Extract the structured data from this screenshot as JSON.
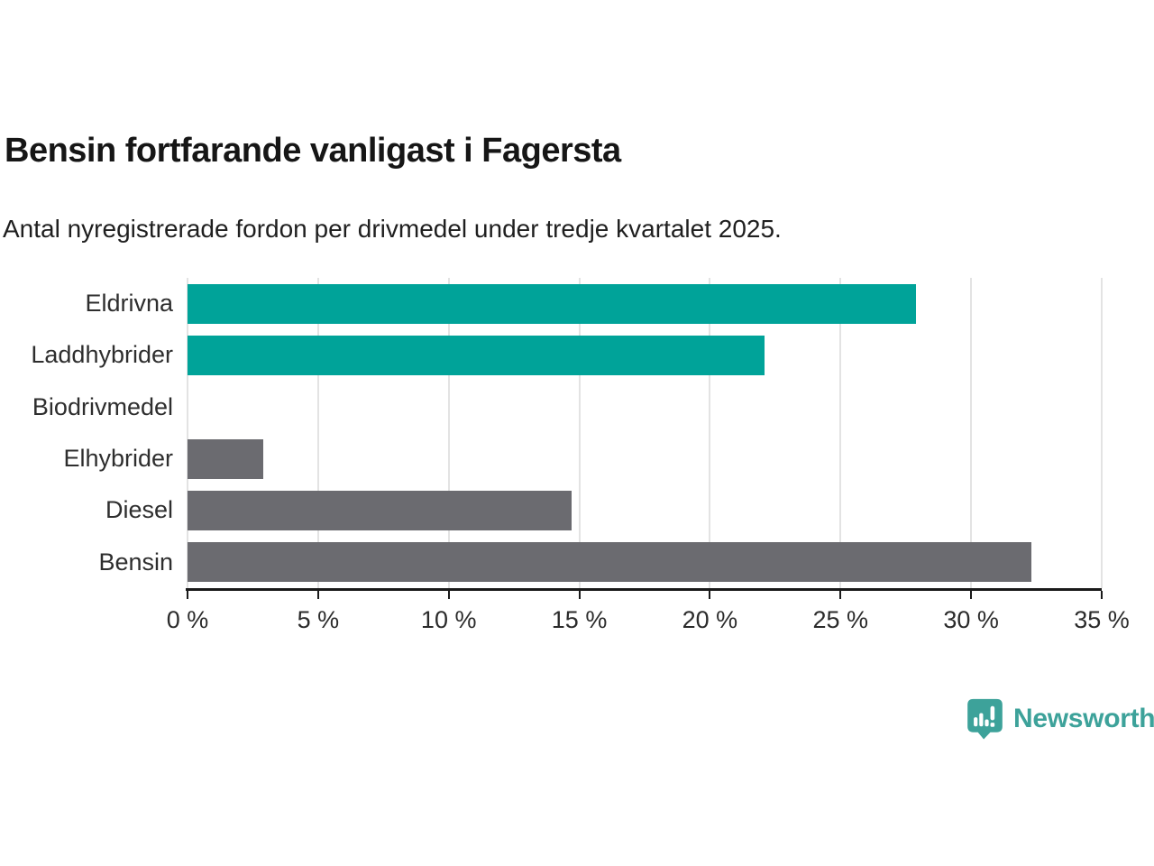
{
  "title": "Bensin fortfarande vanligast i Fagersta",
  "subtitle": "Antal nyregistrerade fordon per drivmedel under tredje kvartalet 2025.",
  "chart_data": {
    "type": "bar",
    "orientation": "horizontal",
    "categories": [
      "Eldrivna",
      "Laddhybrider",
      "Biodrivmedel",
      "Elhybrider",
      "Diesel",
      "Bensin"
    ],
    "values": [
      27.9,
      22.1,
      0,
      2.9,
      14.7,
      32.3
    ],
    "bar_colors": [
      "#00a399",
      "#00a399",
      "#6b6b70",
      "#6b6b70",
      "#6b6b70",
      "#6b6b70"
    ],
    "title": "Bensin fortfarande vanligast i Fagersta",
    "xlabel": "",
    "ylabel": "",
    "xlim": [
      0,
      35
    ],
    "x_ticks": [
      0,
      5,
      10,
      15,
      20,
      25,
      30,
      35
    ],
    "x_tick_labels": [
      "0 %",
      "5 %",
      "10 %",
      "15 %",
      "20 %",
      "25 %",
      "30 %",
      "35 %"
    ],
    "grid": true,
    "legend": false
  },
  "colors": {
    "teal_bar": "#00a399",
    "gray_bar": "#6b6b70",
    "gridline": "#e3e3e3",
    "axis": "#1a1a1a",
    "logo_teal": "#3da29a"
  },
  "footer": {
    "brand": "Newsworthy",
    "logo_icon": "newsworthy-speech-bubble-bar-chart-icon"
  }
}
